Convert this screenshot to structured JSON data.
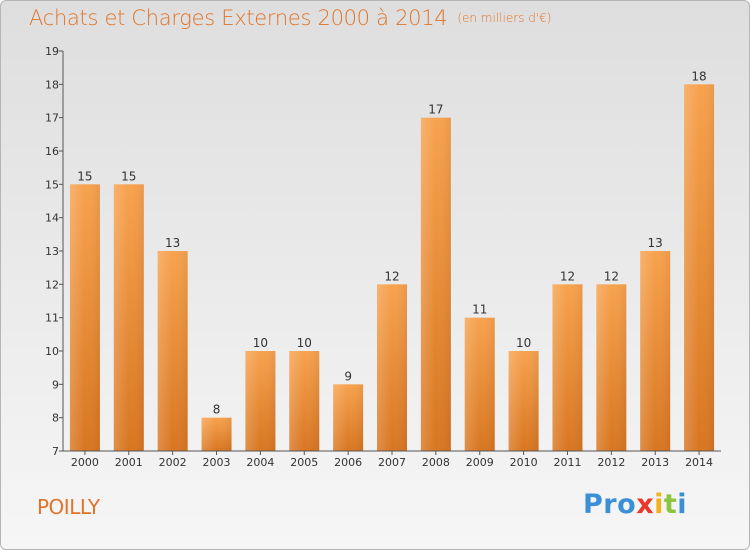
{
  "title": "Achats et Charges Externes 2000 à 2014",
  "subtitle": "(en milliers d'€)",
  "city": "POILLY",
  "logo": {
    "letters": [
      "P",
      "r",
      "o",
      "x",
      "i",
      "t",
      "i"
    ],
    "colors": [
      "#3a8fd6",
      "#3a8fd6",
      "#3a8fd6",
      "#e8392a",
      "#f2b21b",
      "#8cc63f",
      "#3a8fd6"
    ]
  },
  "colors": {
    "title": "#e0742a",
    "bar_top": "#f7a24e",
    "bar_bottom": "#d87621",
    "axis": "#555555"
  },
  "chart_data": {
    "type": "bar",
    "categories": [
      "2000",
      "2001",
      "2002",
      "2003",
      "2004",
      "2005",
      "2006",
      "2007",
      "2008",
      "2009",
      "2010",
      "2011",
      "2012",
      "2013",
      "2014"
    ],
    "values": [
      15,
      15,
      13,
      8,
      10,
      10,
      9,
      12,
      17,
      11,
      10,
      12,
      12,
      13,
      18
    ],
    "ylim": [
      7,
      19
    ],
    "yticks": [
      7,
      8,
      9,
      10,
      11,
      12,
      13,
      14,
      15,
      16,
      17,
      18,
      19
    ],
    "grid": false,
    "data_labels": true
  }
}
